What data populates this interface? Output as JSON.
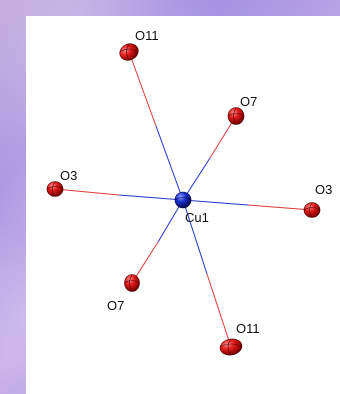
{
  "atoms": {
    "cu1": {
      "label": "Cu1",
      "color": "#1a2fd0"
    },
    "o11_top": {
      "label": "O11",
      "color": "#d21414"
    },
    "o7_upper": {
      "label": "O7",
      "color": "#d21414"
    },
    "o3_left": {
      "label": "O3",
      "color": "#d21414"
    },
    "o3_right": {
      "label": "O3",
      "color": "#d21414"
    },
    "o7_lower": {
      "label": "O7",
      "color": "#d21414"
    },
    "o11_bottom": {
      "label": "O11",
      "color": "#d21414"
    }
  },
  "bond_colors": {
    "metal": "#2233cc",
    "oxygen": "#e03a3a"
  }
}
